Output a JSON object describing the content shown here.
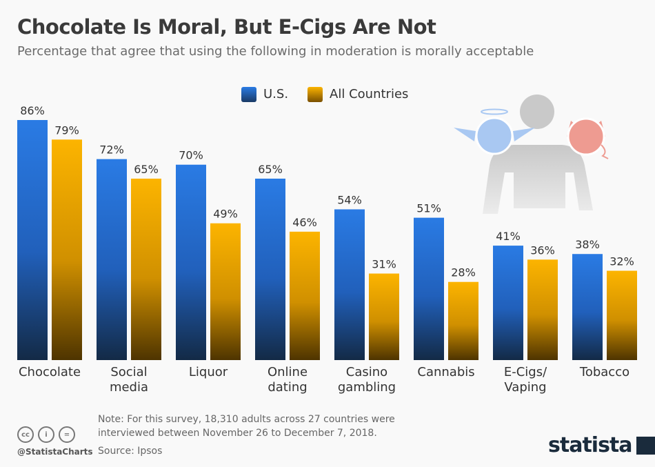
{
  "chart_data": {
    "type": "bar",
    "title": "Chocolate Is Moral, But E-Cigs Are Not",
    "subtitle": "Percentage that agree that using the following in moderation is morally acceptable",
    "categories": [
      [
        "Chocolate"
      ],
      [
        "Social",
        "media"
      ],
      [
        "Liquor"
      ],
      [
        "Online",
        "dating"
      ],
      [
        "Casino",
        "gambling"
      ],
      [
        "Cannabis"
      ],
      [
        "E-Cigs/",
        "Vaping"
      ],
      [
        "Tobacco"
      ]
    ],
    "series": [
      {
        "name": "U.S.",
        "values": [
          86,
          72,
          70,
          65,
          54,
          51,
          41,
          38
        ],
        "color": "#2a7be4"
      },
      {
        "name": "All Countries",
        "values": [
          79,
          65,
          49,
          46,
          31,
          28,
          36,
          32
        ],
        "color": "#fcb400"
      }
    ],
    "value_suffix": "%",
    "ylim": [
      0,
      100
    ],
    "grid": false,
    "legend_position": "top"
  },
  "footer": {
    "note_line1": "Note: For this survey, 18,310 adults across 27 countries were",
    "note_line2": "interviewed between November 26 to December 7, 2018.",
    "source": "Source: Ipsos",
    "handle": "@StatistaCharts",
    "logo": "statista"
  },
  "icons": [
    "cc-icon",
    "attribution-icon",
    "no-derivatives-icon",
    "angel-devil-illustration"
  ]
}
